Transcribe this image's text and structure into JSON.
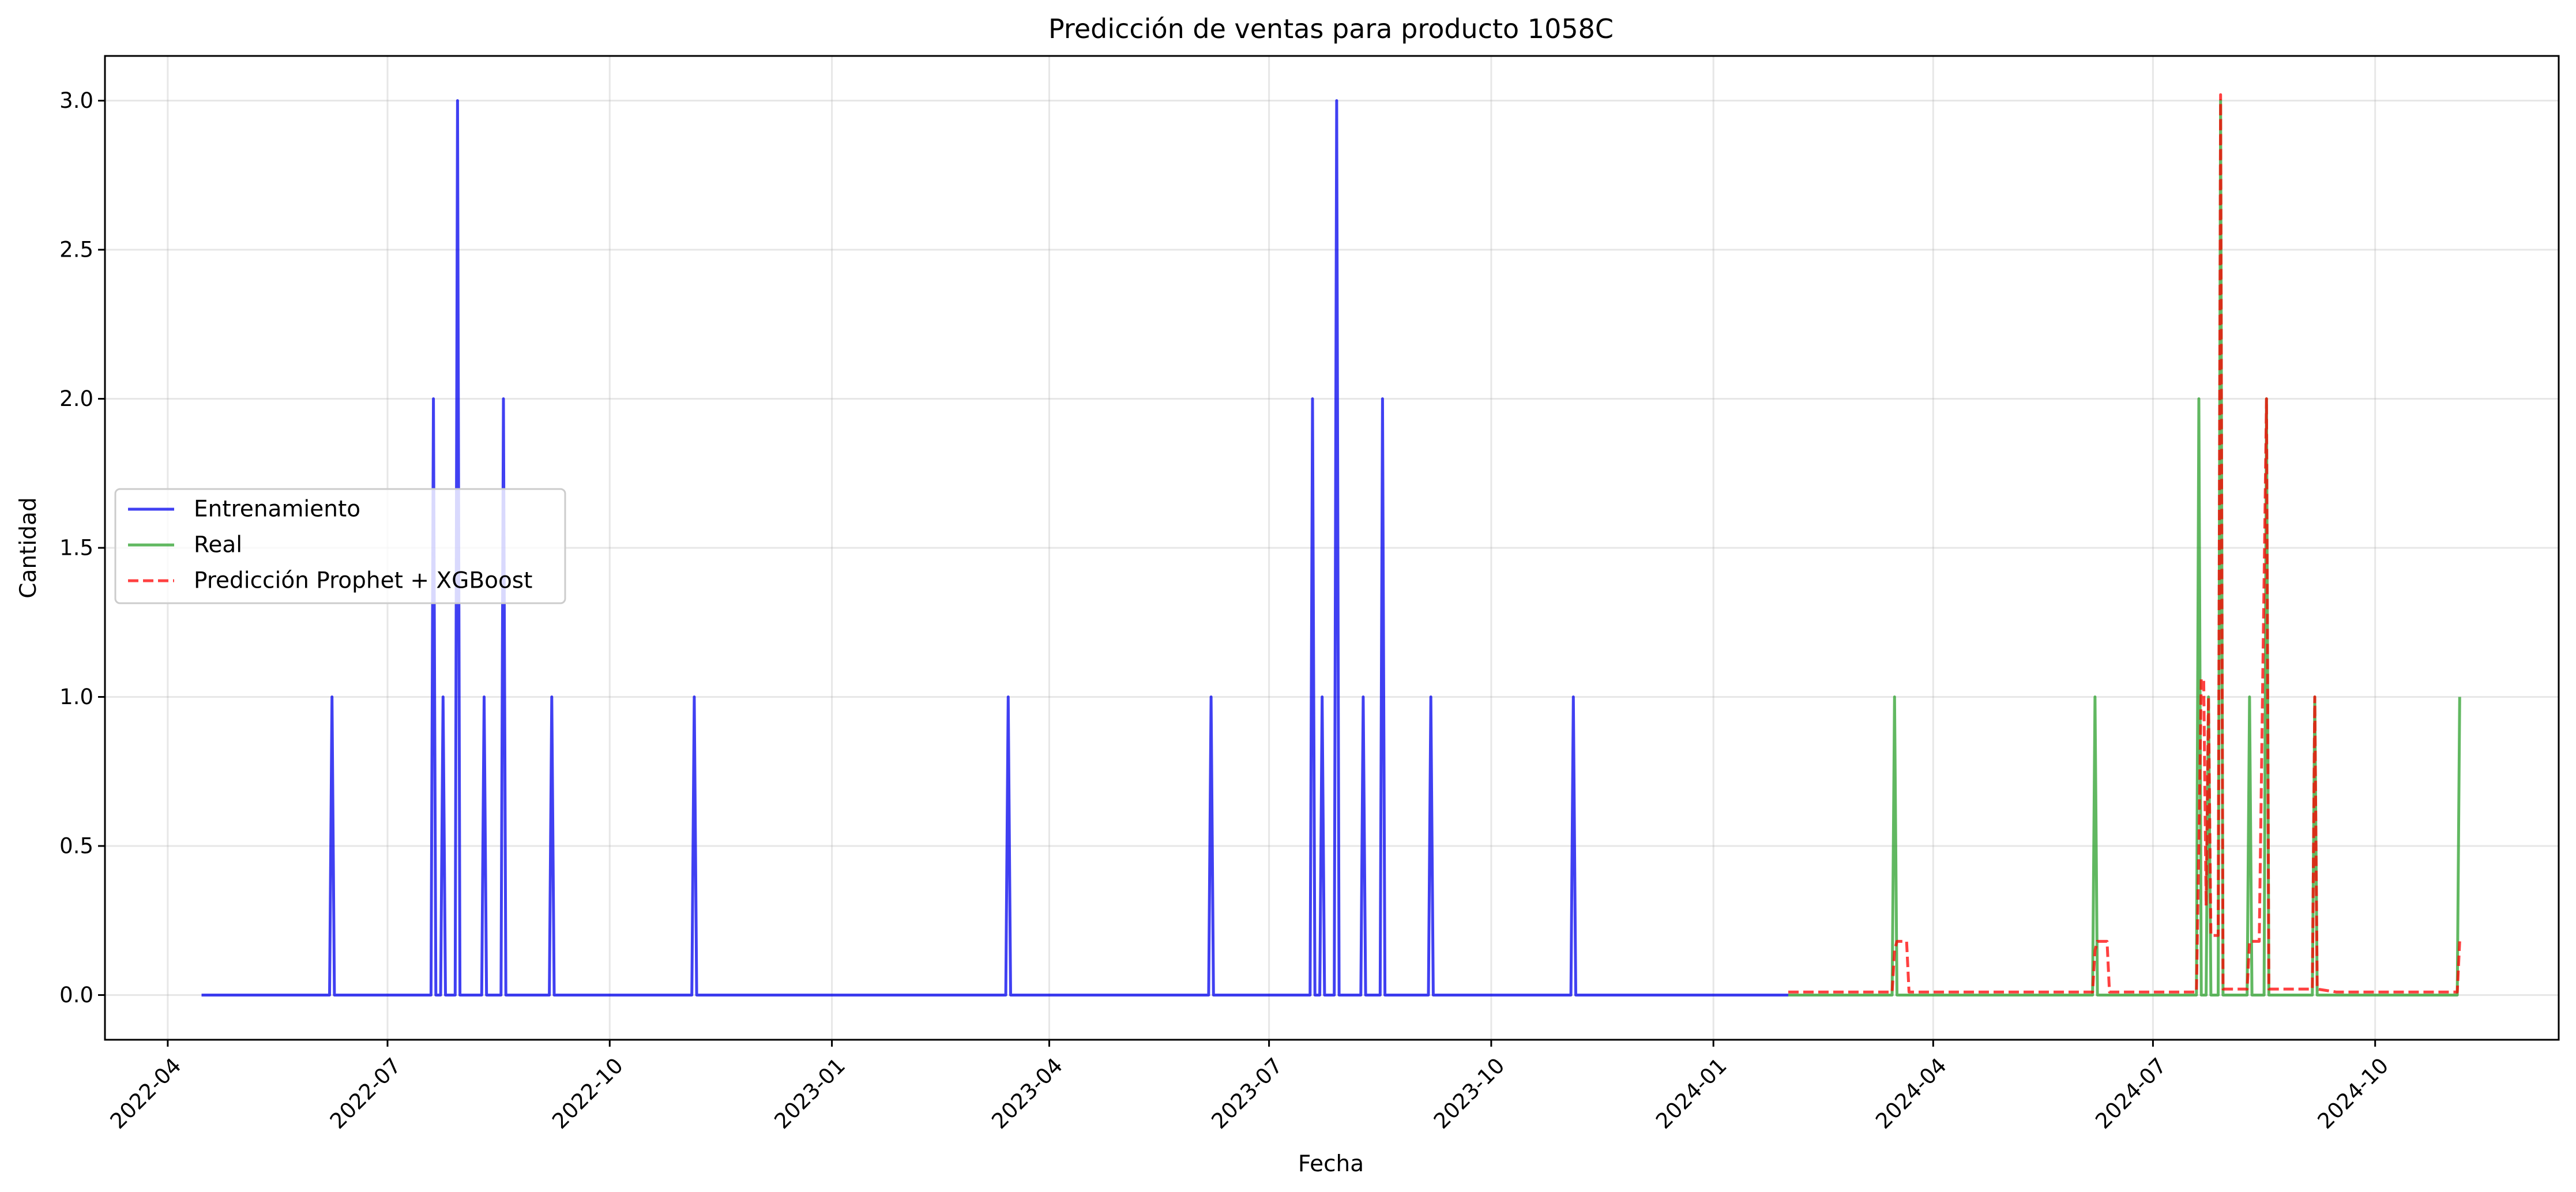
{
  "chart_data": {
    "type": "line",
    "title": "Predicción de ventas para producto 1058C",
    "xlabel": "Fecha",
    "ylabel": "Cantidad",
    "x_axis_type": "date",
    "xlim": [
      "2022-03-06",
      "2024-12-16"
    ],
    "ylim": [
      -0.15,
      3.15
    ],
    "x_ticks": [
      "2022-04",
      "2022-07",
      "2022-10",
      "2023-01",
      "2023-04",
      "2023-07",
      "2023-10",
      "2024-01",
      "2024-04",
      "2024-07",
      "2024-10"
    ],
    "y_ticks": [
      "0.0",
      "0.5",
      "1.0",
      "1.5",
      "2.0",
      "2.5",
      "3.0"
    ],
    "grid": true,
    "legend_position": "center-left",
    "series": [
      {
        "name": "Entrenamiento",
        "color": "#0000ee",
        "style": "solid",
        "baseline": 0,
        "start": "2022-04-15",
        "end": "2024-02-01",
        "spikes": [
          [
            "2022-06-08",
            1
          ],
          [
            "2022-07-20",
            2
          ],
          [
            "2022-07-24",
            1
          ],
          [
            "2022-07-30",
            3
          ],
          [
            "2022-08-10",
            1
          ],
          [
            "2022-08-18",
            2
          ],
          [
            "2022-09-07",
            1
          ],
          [
            "2022-11-05",
            1
          ],
          [
            "2023-03-15",
            1
          ],
          [
            "2023-06-07",
            1
          ],
          [
            "2023-07-19",
            2
          ],
          [
            "2023-07-23",
            1
          ],
          [
            "2023-07-29",
            3
          ],
          [
            "2023-08-09",
            1
          ],
          [
            "2023-08-17",
            2
          ],
          [
            "2023-09-06",
            1
          ],
          [
            "2023-11-04",
            1
          ]
        ]
      },
      {
        "name": "Real",
        "color": "#2ca02c",
        "style": "solid",
        "baseline": 0,
        "start": "2024-02-01",
        "end": "2024-11-05",
        "spikes": [
          [
            "2024-03-16",
            1
          ],
          [
            "2024-06-07",
            1
          ],
          [
            "2024-07-20",
            2
          ],
          [
            "2024-07-24",
            1
          ],
          [
            "2024-07-29",
            3
          ],
          [
            "2024-08-10",
            1
          ],
          [
            "2024-08-17",
            2
          ],
          [
            "2024-09-06",
            1
          ],
          [
            "2024-11-05",
            1
          ]
        ]
      },
      {
        "name": "Predicción Prophet + XGBoost",
        "color": "#ff0000",
        "style": "dashed",
        "baseline": 0.01,
        "start": "2024-02-01",
        "end": "2024-11-05",
        "points": [
          [
            "2024-02-01",
            0.01
          ],
          [
            "2024-03-15",
            0.01
          ],
          [
            "2024-03-16",
            0.15
          ],
          [
            "2024-03-17",
            0.18
          ],
          [
            "2024-03-21",
            0.18
          ],
          [
            "2024-03-22",
            0.01
          ],
          [
            "2024-06-06",
            0.01
          ],
          [
            "2024-06-07",
            0.15
          ],
          [
            "2024-06-08",
            0.18
          ],
          [
            "2024-06-12",
            0.18
          ],
          [
            "2024-06-13",
            0.01
          ],
          [
            "2024-07-19",
            0.01
          ],
          [
            "2024-07-20",
            0.5
          ],
          [
            "2024-07-21",
            1.06
          ],
          [
            "2024-07-22",
            1.06
          ],
          [
            "2024-07-23",
            0.3
          ],
          [
            "2024-07-24",
            1.0
          ],
          [
            "2024-07-25",
            0.2
          ],
          [
            "2024-07-28",
            0.2
          ],
          [
            "2024-07-29",
            3.02
          ],
          [
            "2024-07-30",
            0.02
          ],
          [
            "2024-08-09",
            0.02
          ],
          [
            "2024-08-10",
            0.18
          ],
          [
            "2024-08-14",
            0.18
          ],
          [
            "2024-08-17",
            2.0
          ],
          [
            "2024-08-18",
            0.02
          ],
          [
            "2024-09-05",
            0.02
          ],
          [
            "2024-09-06",
            1.0
          ],
          [
            "2024-09-07",
            0.02
          ],
          [
            "2024-09-15",
            0.01
          ],
          [
            "2024-11-04",
            0.01
          ],
          [
            "2024-11-05",
            0.18
          ]
        ]
      }
    ]
  }
}
